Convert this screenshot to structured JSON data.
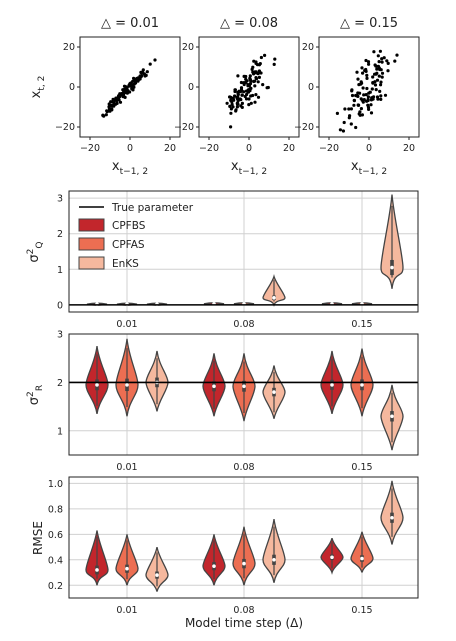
{
  "chart_data": [
    {
      "type": "scatter",
      "panels": [
        {
          "title": "△ = 0.01",
          "xlabel": "x_{t−1,2}",
          "ylabel": "x_{t,2}",
          "xlim": [
            -25,
            25
          ],
          "ylim": [
            -25,
            25
          ],
          "xticks": [
            "−20",
            "0",
            "20"
          ],
          "yticks": [
            "20",
            "0",
            "−20"
          ],
          "spread": 1.5
        },
        {
          "title": "△ = 0.08",
          "xlabel": "x_{t−1,2}",
          "xlim": [
            -25,
            25
          ],
          "ylim": [
            -25,
            25
          ],
          "xticks": [
            "−20",
            "0",
            "20"
          ],
          "yticks": [
            "20",
            "0",
            "−20"
          ],
          "spread": 6
        },
        {
          "title": "△ = 0.15",
          "xlabel": "x_{t−1,2}",
          "xlim": [
            -25,
            25
          ],
          "ylim": [
            -25,
            25
          ],
          "xticks": [
            "−20",
            "0",
            "20"
          ],
          "yticks": [
            "20",
            "0",
            "−20"
          ],
          "spread": 8
        }
      ]
    },
    {
      "type": "violin",
      "ylabel": "σ²_Q",
      "ylim": [
        -0.2,
        3.2
      ],
      "yticks": [
        "0",
        "1",
        "2",
        "3"
      ],
      "reference_line": {
        "label": "True parameter",
        "value": 0
      },
      "categories": [
        "0.01",
        "0.08",
        "0.15"
      ],
      "series": [
        {
          "name": "CPFBS",
          "color": "#c2262c",
          "medians": [
            0.02,
            0.03,
            0.03
          ],
          "ranges": [
            [
              0.0,
              0.05
            ],
            [
              0.0,
              0.07
            ],
            [
              0.0,
              0.08
            ]
          ]
        },
        {
          "name": "CPFAS",
          "color": "#ec6e52",
          "medians": [
            0.02,
            0.03,
            0.03
          ],
          "ranges": [
            [
              0.0,
              0.05
            ],
            [
              0.0,
              0.07
            ],
            [
              0.0,
              0.08
            ]
          ]
        },
        {
          "name": "EnKS",
          "color": "#f5b89e",
          "medians": [
            0.02,
            0.2,
            1.05
          ],
          "ranges": [
            [
              0.0,
              0.06
            ],
            [
              0.0,
              0.8
            ],
            [
              0.45,
              3.1
            ]
          ]
        }
      ]
    },
    {
      "type": "violin",
      "ylabel": "σ²_R",
      "ylim": [
        0.5,
        3.0
      ],
      "yticks": [
        "1",
        "2",
        "3"
      ],
      "reference_line": {
        "value": 2
      },
      "categories": [
        "0.01",
        "0.08",
        "0.15"
      ],
      "series": [
        {
          "name": "CPFBS",
          "color": "#c2262c",
          "medians": [
            1.95,
            1.92,
            1.95
          ],
          "ranges": [
            [
              1.35,
              2.75
            ],
            [
              1.3,
              2.6
            ],
            [
              1.35,
              2.65
            ]
          ]
        },
        {
          "name": "CPFAS",
          "color": "#ec6e52",
          "medians": [
            1.95,
            1.92,
            1.95
          ],
          "ranges": [
            [
              1.3,
              2.9
            ],
            [
              1.2,
              2.6
            ],
            [
              1.3,
              2.7
            ]
          ]
        },
        {
          "name": "EnKS",
          "color": "#f5b89e",
          "medians": [
            2.0,
            1.8,
            1.3
          ],
          "ranges": [
            [
              1.4,
              2.65
            ],
            [
              1.25,
              2.35
            ],
            [
              0.6,
              1.95
            ]
          ]
        }
      ]
    },
    {
      "type": "violin",
      "xlabel": "Model time step (Δ)",
      "ylabel": "RMSE",
      "ylim": [
        0.1,
        1.05
      ],
      "yticks": [
        "0.2",
        "0.4",
        "0.6",
        "0.8",
        "1.0"
      ],
      "categories": [
        "0.01",
        "0.08",
        "0.15"
      ],
      "series": [
        {
          "name": "CPFBS",
          "color": "#c2262c",
          "medians": [
            0.32,
            0.35,
            0.42
          ],
          "ranges": [
            [
              0.2,
              0.63
            ],
            [
              0.2,
              0.6
            ],
            [
              0.3,
              0.57
            ]
          ]
        },
        {
          "name": "CPFAS",
          "color": "#ec6e52",
          "medians": [
            0.33,
            0.37,
            0.41
          ],
          "ranges": [
            [
              0.2,
              0.6
            ],
            [
              0.2,
              0.66
            ],
            [
              0.3,
              0.62
            ]
          ]
        },
        {
          "name": "EnKS",
          "color": "#f5b89e",
          "medians": [
            0.28,
            0.4,
            0.73
          ],
          "ranges": [
            [
              0.15,
              0.5
            ],
            [
              0.22,
              0.72
            ],
            [
              0.52,
              1.02
            ]
          ]
        }
      ]
    }
  ]
}
